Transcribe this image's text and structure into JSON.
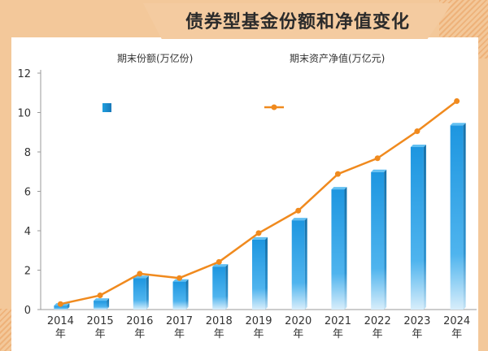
{
  "chart_data": {
    "type": "bar",
    "title": "债券型基金份额和净值变化",
    "categories": [
      "2014",
      "2015",
      "2016",
      "2017",
      "2018",
      "2019",
      "2020",
      "2021",
      "2022",
      "2023",
      "2024"
    ],
    "category_suffix": "年",
    "series": [
      {
        "name": "期末份额(万亿份)",
        "type": "bar",
        "color": "#1a90d8",
        "values": [
          0.2,
          0.45,
          1.6,
          1.42,
          2.18,
          3.55,
          4.53,
          6.1,
          6.98,
          8.25,
          9.35
        ]
      },
      {
        "name": "期末资产净值(万亿元)",
        "type": "line",
        "color": "#f08a1e",
        "values": [
          0.28,
          0.72,
          1.82,
          1.6,
          2.42,
          3.88,
          5.02,
          6.88,
          7.68,
          9.05,
          10.58
        ]
      }
    ],
    "yticks": [
      0,
      2,
      4,
      6,
      8,
      10,
      12
    ],
    "ylim": [
      0,
      12
    ],
    "grid": false,
    "legend": "top"
  }
}
